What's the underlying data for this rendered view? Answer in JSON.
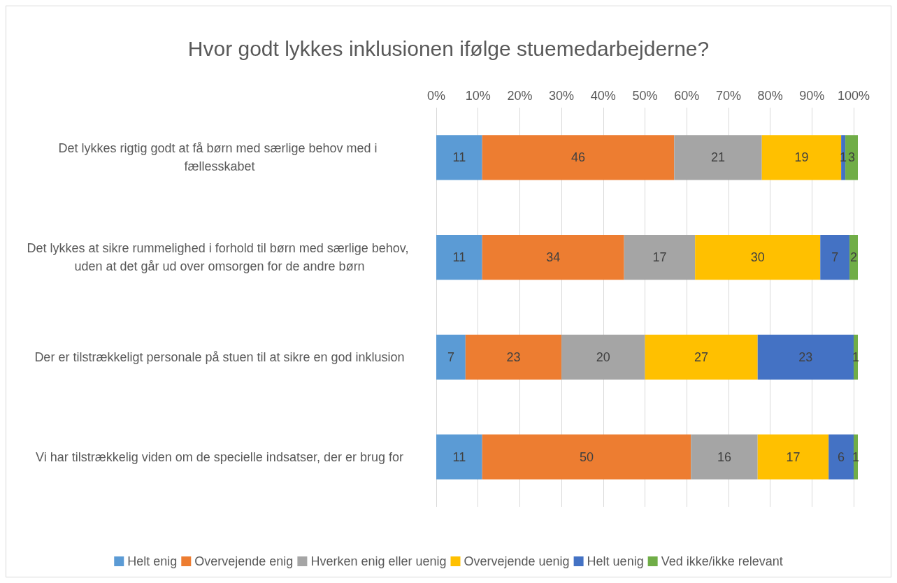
{
  "chart_data": {
    "type": "bar",
    "orientation": "horizontal",
    "stacked": true,
    "title": "Hvor godt lykkes inklusionen ifølge stuemedarbejderne?",
    "categories": [
      "Det lykkes rigtig godt at få børn med særlige behov med i fællesskabet",
      "Det lykkes at sikre rummelighed i forhold til børn med særlige behov, uden at det går ud over omsorgen for de andre børn",
      "Der er tilstrækkeligt personale på stuen til at sikre en god inklusion",
      "Vi har tilstrækkelig viden om de specielle indsatser, der er brug for"
    ],
    "series": [
      {
        "name": "Helt enig",
        "color": "#5b9bd5",
        "values": [
          11,
          11,
          7,
          11
        ]
      },
      {
        "name": "Overvejende enig",
        "color": "#ed7d31",
        "values": [
          46,
          34,
          23,
          50
        ]
      },
      {
        "name": "Hverken enig eller uenig",
        "color": "#a5a5a5",
        "values": [
          21,
          17,
          20,
          16
        ]
      },
      {
        "name": "Overvejende uenig",
        "color": "#ffc000",
        "values": [
          19,
          30,
          27,
          17
        ]
      },
      {
        "name": "Helt uenig",
        "color": "#4472c4",
        "values": [
          1,
          7,
          23,
          6
        ]
      },
      {
        "name": "Ved ikke/ikke relevant",
        "color": "#70ad47",
        "values": [
          3,
          2,
          1,
          1
        ]
      }
    ],
    "xlim": [
      0,
      101
    ],
    "xticks": [
      {
        "value": 0,
        "label": "0%"
      },
      {
        "value": 10,
        "label": "10%"
      },
      {
        "value": 20,
        "label": "20%"
      },
      {
        "value": 30,
        "label": "30%"
      },
      {
        "value": 40,
        "label": "40%"
      },
      {
        "value": 50,
        "label": "50%"
      },
      {
        "value": 60,
        "label": "60%"
      },
      {
        "value": 70,
        "label": "70%"
      },
      {
        "value": 80,
        "label": "80%"
      },
      {
        "value": 90,
        "label": "90%"
      },
      {
        "value": 100,
        "label": "100%"
      }
    ],
    "grid": "x",
    "legend": "bottom",
    "data_labels": true
  }
}
